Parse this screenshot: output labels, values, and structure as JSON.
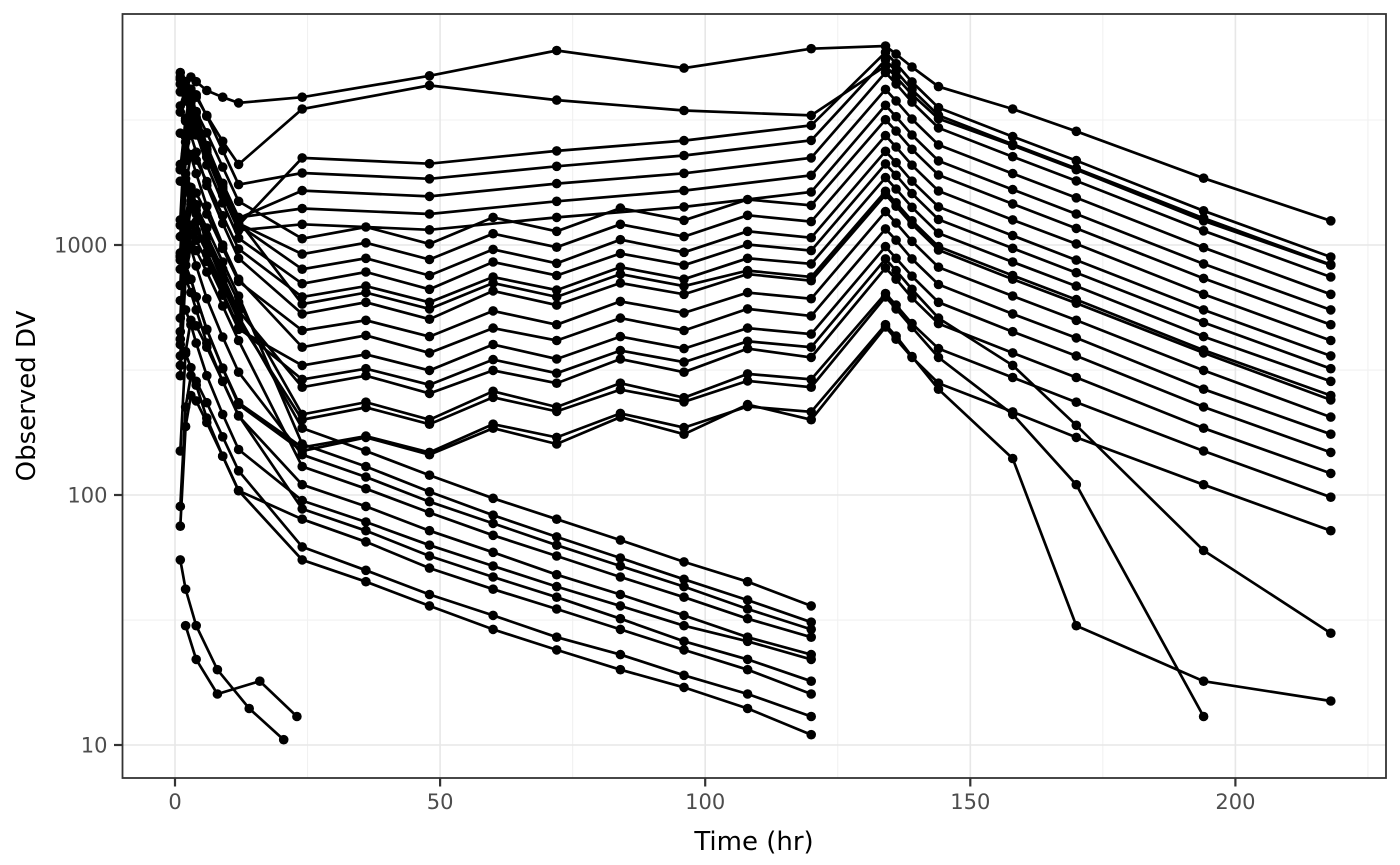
{
  "chart_data": {
    "type": "line",
    "title": "",
    "xlabel": "Time (hr)",
    "ylabel": "Observed DV",
    "legend": false,
    "grid": true,
    "x_axis": {
      "ticks": [
        0,
        50,
        100,
        150,
        200
      ],
      "tick_labels": [
        "0",
        "50",
        "100",
        "150",
        "200"
      ],
      "minor": [
        25,
        75,
        125,
        175,
        225
      ],
      "range": [
        -10,
        228.5
      ]
    },
    "y_axis": {
      "scale": "log10",
      "ticks": [
        10,
        100,
        1000
      ],
      "tick_labels": [
        "10",
        "100",
        "1000"
      ],
      "minor": [
        31.6,
        316,
        3162
      ],
      "range": [
        7.4,
        8400
      ]
    },
    "style": {
      "series_color": "#000000",
      "point_radius": 4.8,
      "line_width": 2.7,
      "panel_border": "#333333",
      "tick_color": "#333333",
      "grid_major": "#e7e7e7",
      "grid_minor": "#f1f1f1",
      "tick_label_color": "#4d4d4d",
      "panel_fill": "#ffffff"
    },
    "time_grids": {
      "rich": [
        1,
        2,
        3,
        4,
        6,
        9,
        12,
        24,
        36,
        48,
        60,
        72,
        84,
        96,
        108,
        120,
        134,
        136,
        139,
        144,
        158,
        170,
        194,
        218
      ],
      "rich24": [
        1,
        2,
        3,
        4,
        6,
        9,
        12,
        24,
        48,
        72,
        96,
        120,
        134,
        136,
        139,
        144,
        158,
        170,
        194,
        218
      ],
      "qd": [
        1,
        2,
        3,
        4,
        6,
        9,
        12,
        24,
        36,
        48,
        60,
        72,
        84,
        96,
        108,
        120
      ]
    },
    "series": [
      {
        "id": "S01",
        "grid": "rich",
        "y": [
          900,
          830,
          730,
          620,
          460,
          320,
          230,
          150,
          170,
          145,
          185,
          160,
          205,
          175,
          230,
          200,
          470,
          420,
          355,
          280,
          215,
          170,
          110,
          72
        ]
      },
      {
        "id": "S02",
        "grid": "rich",
        "y": [
          420,
          1050,
          1400,
          1330,
          1090,
          800,
          590,
          210,
          235,
          200,
          260,
          225,
          280,
          245,
          305,
          290,
          640,
          575,
          485,
          385,
          295,
          235,
          150,
          98
        ]
      },
      {
        "id": "S03",
        "grid": "rich",
        "y": [
          2100,
          1930,
          1700,
          1450,
          1070,
          750,
          545,
          270,
          300,
          255,
          315,
          280,
          350,
          310,
          385,
          355,
          810,
          730,
          615,
          485,
          370,
          295,
          185,
          122
        ]
      },
      {
        "id": "S04",
        "grid": "rich",
        "y": [
          330,
          830,
          1100,
          1045,
          860,
          630,
          460,
          330,
          365,
          315,
          400,
          350,
          430,
          385,
          465,
          440,
          985,
          885,
          750,
          590,
          450,
          360,
          225,
          148
        ]
      },
      {
        "id": "S05",
        "grid": "rich",
        "y": [
          2800,
          2580,
          2270,
          1930,
          1430,
          1000,
          730,
          390,
          435,
          370,
          465,
          415,
          510,
          455,
          555,
          520,
          1160,
          1045,
          880,
          695,
          530,
          425,
          265,
          175
        ]
      },
      {
        "id": "S06",
        "grid": "rich",
        "y": [
          510,
          1280,
          1700,
          1615,
          1330,
          970,
          715,
          455,
          500,
          430,
          545,
          480,
          595,
          535,
          645,
          610,
          1360,
          1225,
          1035,
          815,
          625,
          500,
          315,
          205
        ]
      },
      {
        "id": "S07",
        "grid": "rich",
        "y": [
          3400,
          3130,
          2750,
          2350,
          1730,
          1220,
          885,
          530,
          590,
          505,
          655,
          575,
          705,
          635,
          765,
          720,
          1590,
          1430,
          1210,
          955,
          730,
          585,
          370,
          240
        ]
      },
      {
        "id": "S08",
        "grid": "rich",
        "y": [
          690,
          1730,
          2300,
          2185,
          1795,
          1310,
          965,
          620,
          685,
          590,
          745,
          660,
          815,
          730,
          885,
          840,
          1860,
          1675,
          1415,
          1115,
          855,
          685,
          430,
          285
        ]
      },
      {
        "id": "S09",
        "grid": "rich",
        "y": [
          4100,
          3770,
          3320,
          2830,
          2090,
          1475,
          1065,
          700,
          780,
          665,
          855,
          755,
          925,
          830,
          1005,
          950,
          2110,
          1900,
          1605,
          1265,
          970,
          775,
          490,
          320
        ]
      },
      {
        "id": "S10",
        "grid": "rich",
        "y": [
          870,
          2175,
          2900,
          2755,
          2260,
          1655,
          1205,
          800,
          885,
          755,
          960,
          845,
          1050,
          935,
          1135,
          1070,
          2370,
          2135,
          1800,
          1420,
          1090,
          870,
          550,
          360
        ]
      },
      {
        "id": "S11",
        "grid": "rich",
        "y": [
          4700,
          4320,
          3810,
          3240,
          2400,
          1690,
          1220,
          920,
          1020,
          875,
          1110,
          980,
          1210,
          1080,
          1315,
          1240,
          2740,
          2465,
          2085,
          1645,
          1260,
          1010,
          635,
          415
        ]
      },
      {
        "id": "S12",
        "grid": "rich",
        "y": [
          1080,
          2700,
          3600,
          3420,
          2810,
          2050,
          1495,
          1060,
          1180,
          1010,
          1290,
          1135,
          1405,
          1255,
          1520,
          1440,
          3170,
          2855,
          2415,
          1905,
          1460,
          1165,
          735,
          480
        ]
      },
      {
        "id": "S13",
        "grid": "rich",
        "y": [
          900,
          2250,
          3000,
          2850,
          2340,
          1710,
          1250,
          580,
          645,
          555,
          705,
          620,
          765,
          685,
          790,
          745,
          1640,
          1475,
          1250,
          985,
          755,
          605,
          380,
          250
        ]
      },
      {
        "id": "S14",
        "grid": "rich24",
        "y": [
          4400,
          4050,
          3560,
          3035,
          2245,
          1580,
          1145,
          1210,
          1150,
          1290,
          1420,
          1630,
          3620,
          3260,
          2755,
          2170,
          1665,
          1330,
          840,
          550
        ]
      },
      {
        "id": "S15",
        "grid": "rich24",
        "y": [
          930,
          2325,
          3100,
          2945,
          2415,
          1765,
          1290,
          1400,
          1330,
          1495,
          1650,
          1900,
          4190,
          3770,
          3190,
          2515,
          1930,
          1545,
          975,
          635
        ]
      },
      {
        "id": "S16",
        "grid": "rich24",
        "y": [
          4900,
          4510,
          3970,
          3380,
          2500,
          1760,
          1280,
          1650,
          1565,
          1760,
          1935,
          2230,
          4900,
          4410,
          3730,
          2940,
          2255,
          1805,
          1140,
          745
        ]
      },
      {
        "id": "S17",
        "grid": "rich24",
        "y": [
          1260,
          3150,
          4200,
          3990,
          3275,
          2390,
          1745,
          1940,
          1840,
          2065,
          2280,
          2620,
          5500,
          4950,
          4185,
          3300,
          2530,
          2025,
          1280,
          835
        ]
      },
      {
        "id": "S18",
        "grid": "rich24",
        "y": [
          4600,
          4230,
          3725,
          3175,
          2350,
          1655,
          1200,
          2230,
          2115,
          2380,
          2615,
          3010,
          5900,
          5310,
          4490,
          3540,
          2715,
          2175,
          1370,
          895
        ]
      },
      {
        "id": "S19",
        "grid": "rich24",
        "y": [
          3600,
          4200,
          4700,
          4500,
          4150,
          3900,
          3700,
          3900,
          4750,
          6000,
          5100,
          6100,
          6250,
          5800,
          5150,
          4300,
          3500,
          2850,
          1850,
          1250
        ]
      },
      {
        "id": "S20",
        "grid": "rich24",
        "y": [
          2000,
          3200,
          4100,
          3900,
          3300,
          2600,
          2100,
          3500,
          4350,
          3800,
          3450,
          3300,
          5200,
          4700,
          4000,
          3200,
          2500,
          2000,
          1250,
          830
        ]
      },
      {
        "id": "S21",
        "grid": "qd",
        "y": [
          600,
          550,
          480,
          405,
          300,
          210,
          152,
          95,
          78,
          63,
          52,
          43,
          36,
          30,
          26,
          22
        ]
      },
      {
        "id": "S22",
        "grid": "qd",
        "y": [
          300,
          750,
          1000,
          950,
          780,
          570,
          415,
          130,
          106,
          85,
          69,
          57,
          47,
          39,
          32,
          27
        ]
      },
      {
        "id": "S23",
        "grid": "qd",
        "y": [
          400,
          368,
          323,
          275,
          203,
          143,
          104,
          80,
          65,
          51,
          42,
          35,
          29,
          24,
          20,
          16
        ]
      },
      {
        "id": "S24",
        "grid": "qd",
        "y": [
          450,
          1125,
          1500,
          1425,
          1170,
          855,
          625,
          160,
          130,
          103,
          83,
          68,
          56,
          46,
          38,
          31
        ]
      },
      {
        "id": "S25",
        "grid": "qd",
        "y": [
          800,
          735,
          645,
          550,
          405,
          285,
          207,
          110,
          90,
          72,
          59,
          48,
          40,
          33,
          27,
          23
        ]
      },
      {
        "id": "S26",
        "grid": "qd",
        "y": [
          90,
          225,
          300,
          285,
          234,
          171,
          125,
          62,
          50,
          40,
          33,
          27,
          23,
          19,
          16,
          13
        ]
      },
      {
        "id": "S27",
        "grid": "qd",
        "y": [
          1200,
          1100,
          970,
          825,
          610,
          428,
          310,
          145,
          118,
          94,
          77,
          63,
          52,
          43,
          35,
          29
        ]
      },
      {
        "id": "S28",
        "grid": "qd",
        "y": [
          150,
          375,
          500,
          475,
          390,
          285,
          208,
          88,
          72,
          57,
          47,
          39,
          32,
          26,
          22,
          18
        ]
      },
      {
        "id": "S29",
        "grid": "qd",
        "y": [
          2000,
          1840,
          1615,
          1375,
          1015,
          715,
          518,
          185,
          150,
          120,
          97,
          80,
          66,
          54,
          45,
          36
        ]
      },
      {
        "id": "S30",
        "grid": "qd",
        "y": [
          75,
          188,
          250,
          238,
          195,
          143,
          104,
          55,
          45,
          36,
          29,
          24,
          20,
          17,
          14,
          11
        ]
      },
      {
        "id": "S31",
        "grid": "rich",
        "y": [
          1800,
          1655,
          1455,
          1240,
          915,
          645,
          467,
          290,
          320,
          276,
          348,
          307,
          378,
          340,
          412,
          390,
          880,
          790,
          665,
          510,
          330,
          190,
          60,
          28
        ]
      },
      {
        "id": "S32",
        "grid": "rich",
        "y": [
          360,
          900,
          1200,
          1140,
          935,
          685,
          500,
          200,
          224,
          192,
          246,
          216,
          264,
          236,
          286,
          270,
          620,
          555,
          468,
          355,
          210,
          110,
          13,
          null
        ]
      },
      {
        "id": "S33",
        "grid": "rich",
        "y": [
          900,
          828,
          728,
          620,
          458,
          322,
          234,
          155,
          172,
          148,
          192,
          170,
          212,
          186,
          226,
          215,
          480,
          432,
          358,
          265,
          140,
          30,
          18,
          15
        ]
      },
      {
        "id": "S34",
        "t": [
          1,
          2,
          4,
          8,
          14,
          20.5
        ],
        "y": [
          55,
          42,
          30,
          20,
          14,
          10.5
        ]
      },
      {
        "id": "S35",
        "t": [
          2,
          4,
          8,
          16,
          23
        ],
        "y": [
          30,
          22,
          16,
          18,
          13
        ]
      }
    ]
  }
}
